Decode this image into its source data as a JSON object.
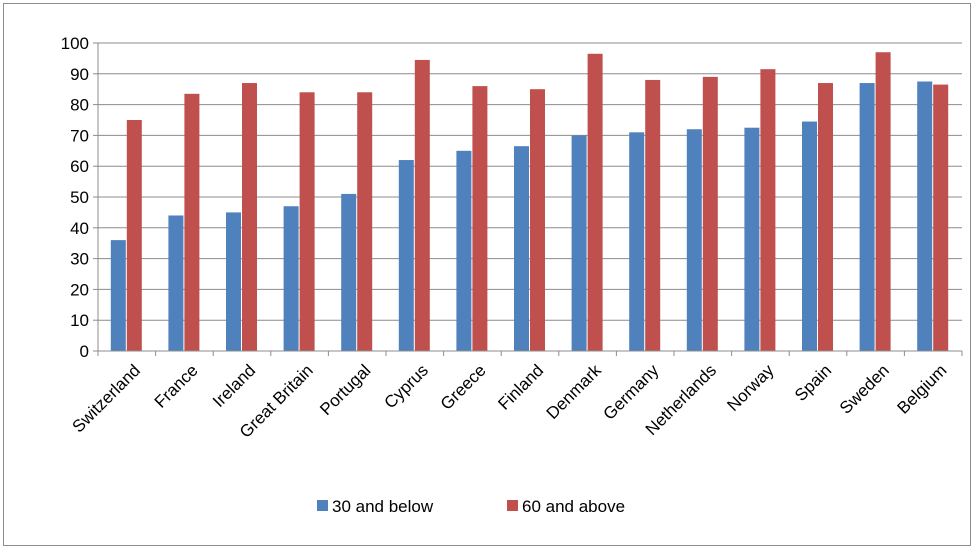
{
  "chart_data": {
    "type": "bar",
    "title": "",
    "xlabel": "",
    "ylabel": "",
    "ylim": [
      0,
      100
    ],
    "yticks": [
      0,
      10,
      20,
      30,
      40,
      50,
      60,
      70,
      80,
      90,
      100
    ],
    "grid": true,
    "legend_position": "bottom",
    "categories": [
      "Switzerland",
      "France",
      "Ireland",
      "Great Britain",
      "Portugal",
      "Cyprus",
      "Greece",
      "Finland",
      "Denmark",
      "Germany",
      "Netherlands",
      "Norway",
      "Spain",
      "Sweden",
      "Belgium"
    ],
    "series": [
      {
        "name": "30 and below",
        "color": "#4f81bd",
        "values": [
          36,
          44,
          45,
          47,
          51,
          62,
          65,
          66.5,
          70,
          71,
          72,
          72.5,
          74.5,
          87,
          87.5
        ]
      },
      {
        "name": "60 and above",
        "color": "#c0504d",
        "values": [
          75,
          83.5,
          87,
          84,
          84,
          94.5,
          86,
          85,
          96.5,
          88,
          89,
          91.5,
          87,
          97,
          86.5
        ]
      }
    ]
  }
}
